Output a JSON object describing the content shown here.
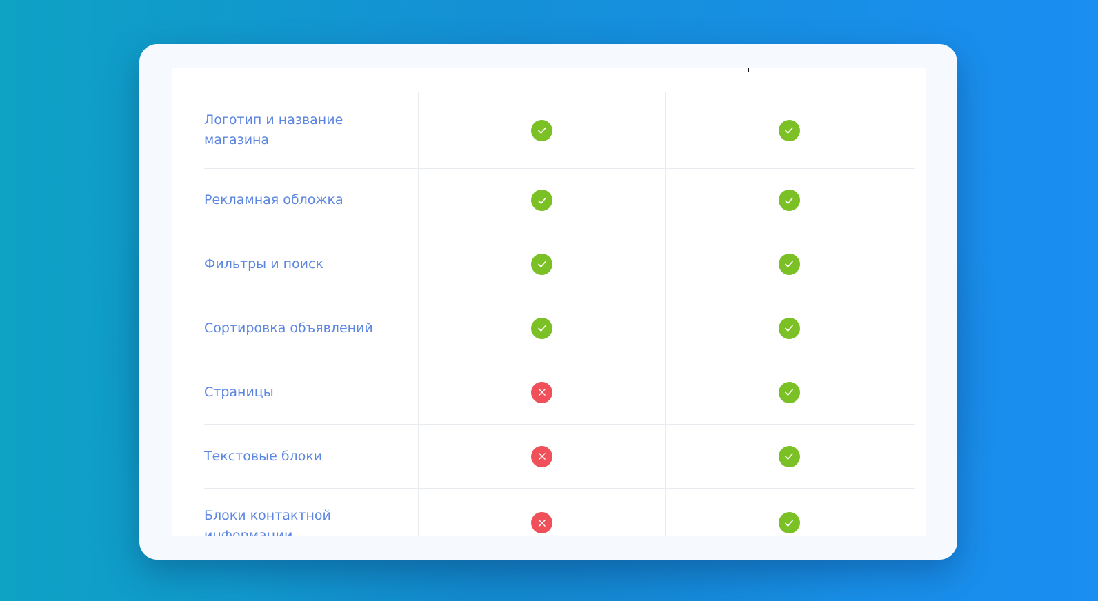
{
  "colors": {
    "label": "#5c86e0",
    "yes": "#7bc125",
    "no": "#f0505a",
    "divider": "#e8ebf0",
    "card": "#f6f9fd"
  },
  "table": {
    "rows": [
      {
        "label": "Логотип и название магазина",
        "col1": "check-icon",
        "col2": "check-icon"
      },
      {
        "label": "Рекламная обложка",
        "col1": "check-icon",
        "col2": "check-icon"
      },
      {
        "label": "Фильтры и поиск",
        "col1": "check-icon",
        "col2": "check-icon"
      },
      {
        "label": "Сортировка объявлений",
        "col1": "check-icon",
        "col2": "check-icon"
      },
      {
        "label": "Страницы",
        "col1": "cross-icon",
        "col2": "check-icon"
      },
      {
        "label": "Текстовые блоки",
        "col1": "cross-icon",
        "col2": "check-icon"
      },
      {
        "label": "Блоки контактной информации",
        "col1": "cross-icon",
        "col2": "check-icon"
      }
    ]
  }
}
